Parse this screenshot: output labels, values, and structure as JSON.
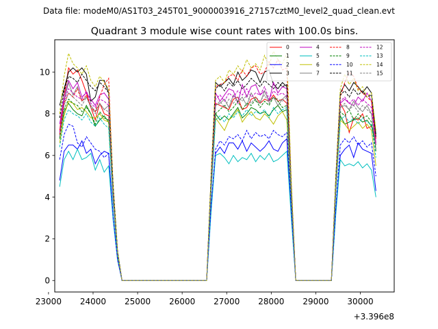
{
  "suptitle": "Data file: modeM0/AS1T03_245T01_9000003916_27157cztM0_level2_quad_clean.evt",
  "chart_data": {
    "type": "line",
    "title": "Quadrant 3 module wise count rates with 100.0s bins.",
    "xlabel": "",
    "ylabel": "",
    "offset_label": "+3.396e8",
    "xlim": [
      23140,
      30760
    ],
    "ylim": [
      -0.55,
      11.55
    ],
    "xticks": [
      23000,
      24000,
      25000,
      26000,
      27000,
      28000,
      29000,
      30000
    ],
    "yticks": [
      0,
      2,
      4,
      6,
      8,
      10
    ],
    "grid": false,
    "legend_position": "top-right",
    "x": [
      23250,
      23350,
      23450,
      23550,
      23650,
      23750,
      23850,
      23950,
      24050,
      24150,
      24250,
      24350,
      24450,
      24550,
      24650,
      24750,
      24850,
      24950,
      25050,
      25150,
      25250,
      25350,
      25450,
      25550,
      25650,
      25750,
      25850,
      25950,
      26050,
      26150,
      26250,
      26350,
      26450,
      26550,
      26650,
      26750,
      26850,
      26950,
      27050,
      27150,
      27250,
      27350,
      27450,
      27550,
      27650,
      27750,
      27850,
      27950,
      28050,
      28150,
      28250,
      28350,
      28450,
      28550,
      28650,
      28750,
      28850,
      28950,
      29050,
      29150,
      29250,
      29350,
      29450,
      29550,
      29650,
      29750,
      29850,
      29950,
      30050,
      30150,
      30250,
      30350
    ],
    "series": [
      {
        "name": "0",
        "color": "#ff0000",
        "dash": "solid",
        "values": [
          7.2,
          8.8,
          10.2,
          9.9,
          10.1,
          9.6,
          9.0,
          8.3,
          7.7,
          8.5,
          8.0,
          7.9,
          4.0,
          1.2,
          0,
          0,
          0,
          0,
          0,
          0,
          0,
          0,
          0,
          0,
          0,
          0,
          0,
          0,
          0,
          0,
          0,
          0,
          0,
          0,
          4.5,
          8.5,
          8.4,
          8.3,
          8.2,
          8.7,
          8.8,
          8.2,
          8.3,
          8.7,
          8.8,
          8.5,
          8.7,
          8.6,
          8.9,
          8.6,
          8.7,
          8.5,
          4.0,
          0,
          0,
          0,
          0,
          0,
          0,
          0,
          0,
          0,
          4.5,
          8.5,
          8.1,
          7.1,
          7.8,
          7.7,
          8.0,
          7.3,
          7.4,
          6.9
        ]
      },
      {
        "name": "1",
        "color": "#008000",
        "dash": "solid",
        "values": [
          7.0,
          8.1,
          8.5,
          8.2,
          8.0,
          7.9,
          8.4,
          8.0,
          7.4,
          7.7,
          7.9,
          7.6,
          4.0,
          1.2,
          0,
          0,
          0,
          0,
          0,
          0,
          0,
          0,
          0,
          0,
          0,
          0,
          0,
          0,
          0,
          0,
          0,
          0,
          0,
          0,
          4.4,
          8.0,
          7.7,
          7.9,
          7.7,
          8.0,
          8.3,
          7.8,
          8.0,
          8.3,
          8.2,
          8.0,
          8.1,
          7.9,
          8.2,
          8.4,
          8.1,
          8.2,
          3.9,
          0,
          0,
          0,
          0,
          0,
          0,
          0,
          0,
          0,
          4.4,
          7.9,
          7.5,
          7.6,
          7.7,
          7.8,
          7.6,
          7.7,
          7.4,
          6.5
        ]
      },
      {
        "name": "2",
        "color": "#0000ff",
        "dash": "solid",
        "values": [
          4.8,
          6.2,
          6.5,
          6.5,
          6.3,
          6.7,
          6.1,
          6.3,
          5.6,
          6.0,
          6.2,
          6.1,
          3.0,
          1.0,
          0,
          0,
          0,
          0,
          0,
          0,
          0,
          0,
          0,
          0,
          0,
          0,
          0,
          0,
          0,
          0,
          0,
          0,
          0,
          0,
          3.5,
          6.1,
          6.4,
          6.1,
          6.6,
          6.6,
          6.3,
          6.7,
          6.2,
          6.6,
          6.4,
          6.2,
          6.4,
          6.7,
          6.3,
          6.2,
          6.6,
          6.8,
          3.2,
          0,
          0,
          0,
          0,
          0,
          0,
          0,
          0,
          0,
          3.4,
          6.0,
          6.3,
          6.5,
          5.9,
          6.6,
          6.3,
          6.2,
          6.1,
          4.3
        ]
      },
      {
        "name": "3",
        "color": "#000000",
        "dash": "solid",
        "values": [
          8.4,
          9.2,
          10.0,
          10.2,
          10.0,
          10.2,
          9.9,
          8.6,
          8.8,
          9.6,
          9.6,
          9.0,
          4.6,
          1.4,
          0,
          0,
          0,
          0,
          0,
          0,
          0,
          0,
          0,
          0,
          0,
          0,
          0,
          0,
          0,
          0,
          0,
          0,
          0,
          0,
          5.0,
          9.5,
          9.3,
          9.5,
          9.7,
          9.4,
          10.0,
          9.6,
          9.8,
          10.1,
          10.0,
          9.5,
          10.0,
          10.1,
          9.4,
          9.2,
          9.5,
          9.3,
          4.5,
          0,
          0,
          0,
          0,
          0,
          0,
          0,
          0,
          0,
          5.0,
          9.0,
          9.4,
          9.1,
          9.5,
          9.3,
          9.0,
          9.3,
          9.0,
          7.0
        ]
      },
      {
        "name": "4",
        "color": "#bf00bf",
        "dash": "solid",
        "values": [
          7.5,
          8.8,
          9.6,
          9.2,
          9.5,
          8.8,
          9.0,
          8.7,
          8.4,
          8.9,
          9.0,
          8.7,
          4.3,
          1.3,
          0,
          0,
          0,
          0,
          0,
          0,
          0,
          0,
          0,
          0,
          0,
          0,
          0,
          0,
          0,
          0,
          0,
          0,
          0,
          0,
          4.8,
          9.0,
          8.6,
          8.9,
          9.2,
          9.1,
          8.5,
          9.4,
          8.8,
          9.3,
          9.4,
          8.9,
          9.1,
          8.6,
          9.5,
          9.0,
          9.3,
          9.2,
          4.4,
          0,
          0,
          0,
          0,
          0,
          0,
          0,
          0,
          0,
          4.7,
          8.5,
          8.7,
          8.5,
          8.4,
          8.8,
          8.6,
          9.0,
          8.6,
          6.6
        ]
      },
      {
        "name": "5",
        "color": "#00bfbf",
        "dash": "solid",
        "values": [
          4.5,
          5.8,
          6.2,
          5.8,
          6.3,
          5.8,
          5.9,
          6.1,
          5.3,
          5.8,
          5.2,
          5.5,
          2.9,
          1.0,
          0,
          0,
          0,
          0,
          0,
          0,
          0,
          0,
          0,
          0,
          0,
          0,
          0,
          0,
          0,
          0,
          0,
          0,
          0,
          0,
          3.3,
          6.0,
          6.1,
          5.9,
          5.6,
          6.0,
          5.7,
          5.9,
          5.8,
          6.1,
          5.7,
          6.0,
          5.8,
          6.1,
          5.7,
          5.8,
          6.0,
          6.2,
          3.0,
          0,
          0,
          0,
          0,
          0,
          0,
          0,
          0,
          0,
          3.2,
          5.8,
          5.5,
          5.6,
          5.5,
          5.7,
          5.4,
          5.6,
          5.3,
          4.0
        ]
      },
      {
        "name": "6",
        "color": "#bfbf00",
        "dash": "solid",
        "values": [
          6.6,
          7.9,
          8.6,
          8.5,
          8.2,
          8.3,
          8.1,
          7.8,
          7.8,
          8.0,
          7.7,
          7.6,
          3.9,
          1.2,
          0,
          0,
          0,
          0,
          0,
          0,
          0,
          0,
          0,
          0,
          0,
          0,
          0,
          0,
          0,
          0,
          0,
          0,
          0,
          0,
          4.3,
          7.8,
          7.5,
          7.2,
          7.7,
          7.9,
          8.2,
          7.6,
          7.9,
          8.1,
          7.8,
          7.7,
          8.0,
          7.8,
          7.5,
          7.9,
          8.1,
          7.7,
          3.8,
          0,
          0,
          0,
          0,
          0,
          0,
          0,
          0,
          0,
          4.3,
          7.7,
          7.5,
          7.2,
          7.4,
          7.6,
          7.3,
          7.5,
          7.2,
          5.5
        ]
      },
      {
        "name": "7",
        "color": "#808080",
        "dash": "solid",
        "values": [
          6.9,
          8.6,
          9.5,
          8.9,
          9.3,
          8.6,
          8.8,
          8.4,
          8.1,
          8.5,
          8.2,
          8.4,
          4.1,
          1.3,
          0,
          0,
          0,
          0,
          0,
          0,
          0,
          0,
          0,
          0,
          0,
          0,
          0,
          0,
          0,
          0,
          0,
          0,
          0,
          0,
          4.6,
          8.4,
          8.5,
          8.7,
          8.3,
          8.9,
          8.6,
          8.8,
          8.4,
          9.0,
          8.6,
          8.5,
          9.1,
          8.6,
          8.8,
          8.4,
          8.7,
          8.9,
          4.3,
          0,
          0,
          0,
          0,
          0,
          0,
          0,
          0,
          0,
          4.5,
          8.3,
          8.4,
          8.2,
          8.6,
          8.3,
          8.1,
          8.4,
          8.0,
          6.3
        ]
      },
      {
        "name": "8",
        "color": "#ff0000",
        "dash": "dashed",
        "values": [
          7.0,
          8.5,
          9.0,
          8.8,
          9.2,
          8.6,
          8.9,
          8.3,
          8.1,
          8.8,
          9.4,
          9.7,
          4.4,
          1.3,
          0,
          0,
          0,
          0,
          0,
          0,
          0,
          0,
          0,
          0,
          0,
          0,
          0,
          0,
          0,
          0,
          0,
          0,
          0,
          0,
          4.8,
          9.3,
          9.4,
          9.5,
          9.8,
          9.9,
          9.6,
          10.1,
          9.8,
          10.2,
          10.3,
          9.9,
          10.0,
          10.5,
          10.2,
          10.6,
          10.1,
          10.2,
          4.6,
          0,
          0,
          0,
          0,
          0,
          0,
          0,
          0,
          0,
          4.8,
          8.8,
          9.5,
          10.0,
          9.8,
          9.2,
          9.0,
          8.8,
          8.6,
          6.8
        ]
      },
      {
        "name": "9",
        "color": "#008000",
        "dash": "dashed",
        "values": [
          6.8,
          8.2,
          8.7,
          8.5,
          8.4,
          8.1,
          8.3,
          8.0,
          7.5,
          8.1,
          7.8,
          7.7,
          3.9,
          1.2,
          0,
          0,
          0,
          0,
          0,
          0,
          0,
          0,
          0,
          0,
          0,
          0,
          0,
          0,
          0,
          0,
          0,
          0,
          0,
          0,
          4.4,
          8.0,
          8.2,
          8.4,
          8.1,
          8.3,
          8.6,
          8.2,
          8.5,
          8.4,
          8.7,
          8.3,
          8.6,
          8.4,
          8.8,
          8.6,
          8.3,
          8.4,
          4.0,
          0,
          0,
          0,
          0,
          0,
          0,
          0,
          0,
          0,
          4.4,
          8.1,
          7.9,
          8.2,
          7.7,
          8.0,
          7.8,
          7.9,
          7.6,
          6.2
        ]
      },
      {
        "name": "10",
        "color": "#0000ff",
        "dash": "dashed",
        "values": [
          5.8,
          7.0,
          7.5,
          7.4,
          6.6,
          6.4,
          6.9,
          6.6,
          6.3,
          6.2,
          5.9,
          6.1,
          3.1,
          1.0,
          0,
          0,
          0,
          0,
          0,
          0,
          0,
          0,
          0,
          0,
          0,
          0,
          0,
          0,
          0,
          0,
          0,
          0,
          0,
          0,
          3.6,
          6.3,
          6.7,
          6.5,
          6.9,
          6.8,
          7.0,
          6.7,
          7.2,
          6.8,
          7.1,
          6.9,
          7.0,
          6.8,
          7.2,
          7.0,
          6.9,
          7.1,
          3.4,
          0,
          0,
          0,
          0,
          0,
          0,
          0,
          0,
          0,
          3.5,
          6.5,
          6.8,
          6.6,
          6.9,
          6.5,
          6.7,
          6.4,
          6.6,
          5.0
        ]
      },
      {
        "name": "11",
        "color": "#000000",
        "dash": "dashed",
        "values": [
          7.8,
          9.1,
          9.8,
          9.7,
          9.5,
          9.9,
          9.6,
          9.3,
          9.1,
          9.5,
          9.3,
          9.0,
          4.5,
          1.4,
          0,
          0,
          0,
          0,
          0,
          0,
          0,
          0,
          0,
          0,
          0,
          0,
          0,
          0,
          0,
          0,
          0,
          0,
          0,
          0,
          4.9,
          9.2,
          9.4,
          9.1,
          9.5,
          9.3,
          9.6,
          9.2,
          9.4,
          9.7,
          9.5,
          9.3,
          9.6,
          9.4,
          9.2,
          9.5,
          9.3,
          9.4,
          4.5,
          0,
          0,
          0,
          0,
          0,
          0,
          0,
          0,
          0,
          4.8,
          8.9,
          9.1,
          8.8,
          9.2,
          8.9,
          9.1,
          8.8,
          8.9,
          6.9
        ]
      },
      {
        "name": "12",
        "color": "#bf00bf",
        "dash": "dashed",
        "values": [
          7.1,
          8.6,
          9.2,
          9.0,
          8.8,
          8.7,
          9.1,
          8.5,
          8.3,
          8.7,
          8.6,
          8.4,
          4.2,
          1.3,
          0,
          0,
          0,
          0,
          0,
          0,
          0,
          0,
          0,
          0,
          0,
          0,
          0,
          0,
          0,
          0,
          0,
          0,
          0,
          0,
          4.6,
          8.7,
          8.9,
          8.6,
          9.0,
          8.8,
          9.1,
          8.9,
          9.2,
          8.8,
          9.0,
          8.9,
          9.3,
          8.7,
          9.1,
          8.9,
          9.0,
          8.8,
          4.3,
          0,
          0,
          0,
          0,
          0,
          0,
          0,
          0,
          0,
          4.6,
          8.6,
          8.8,
          8.5,
          8.7,
          8.4,
          8.7,
          8.5,
          8.3,
          6.5
        ]
      },
      {
        "name": "13",
        "color": "#00bfbf",
        "dash": "dashed",
        "values": [
          6.4,
          7.7,
          8.2,
          8.0,
          7.9,
          7.7,
          8.0,
          7.6,
          7.4,
          7.8,
          7.5,
          7.3,
          3.7,
          1.2,
          0,
          0,
          0,
          0,
          0,
          0,
          0,
          0,
          0,
          0,
          0,
          0,
          0,
          0,
          0,
          0,
          0,
          0,
          0,
          0,
          4.2,
          7.7,
          7.9,
          7.6,
          8.0,
          7.8,
          8.1,
          7.9,
          8.2,
          7.9,
          8.1,
          8.0,
          8.2,
          7.8,
          8.3,
          8.0,
          8.2,
          8.3,
          4.0,
          0,
          0,
          0,
          0,
          0,
          0,
          0,
          0,
          0,
          4.2,
          7.7,
          7.9,
          7.6,
          7.8,
          7.5,
          7.8,
          7.6,
          7.5,
          5.9
        ]
      },
      {
        "name": "14",
        "color": "#bfbf00",
        "dash": "dashed",
        "values": [
          8.0,
          9.8,
          10.9,
          10.4,
          10.2,
          9.9,
          10.3,
          9.6,
          9.3,
          9.8,
          9.5,
          9.2,
          4.6,
          1.4,
          0,
          0,
          0,
          0,
          0,
          0,
          0,
          0,
          0,
          0,
          0,
          0,
          0,
          0,
          0,
          0,
          0,
          0,
          0,
          0,
          5.1,
          9.6,
          9.8,
          9.5,
          10.1,
          9.9,
          10.3,
          10.0,
          10.6,
          10.2,
          10.4,
          10.1,
          10.8,
          10.3,
          11.0,
          10.6,
          10.4,
          10.9,
          4.8,
          0,
          0,
          0,
          0,
          0,
          0,
          0,
          0,
          0,
          5.0,
          9.2,
          9.9,
          9.4,
          9.7,
          9.1,
          9.3,
          8.8,
          9.0,
          7.2
        ]
      },
      {
        "name": "15",
        "color": "#808080",
        "dash": "dashed",
        "values": [
          6.9,
          8.4,
          9.0,
          8.8,
          8.6,
          8.4,
          8.8,
          8.3,
          8.0,
          8.5,
          8.2,
          8.1,
          4.1,
          1.3,
          0,
          0,
          0,
          0,
          0,
          0,
          0,
          0,
          0,
          0,
          0,
          0,
          0,
          0,
          0,
          0,
          0,
          0,
          0,
          0,
          4.5,
          8.4,
          8.6,
          8.3,
          8.7,
          8.5,
          8.8,
          8.6,
          8.9,
          8.5,
          8.8,
          8.6,
          8.9,
          8.5,
          8.8,
          8.7,
          8.6,
          8.8,
          4.2,
          0,
          0,
          0,
          0,
          0,
          0,
          0,
          0,
          0,
          4.5,
          8.3,
          8.5,
          8.2,
          8.4,
          8.1,
          8.4,
          8.2,
          8.0,
          6.3
        ]
      }
    ]
  }
}
